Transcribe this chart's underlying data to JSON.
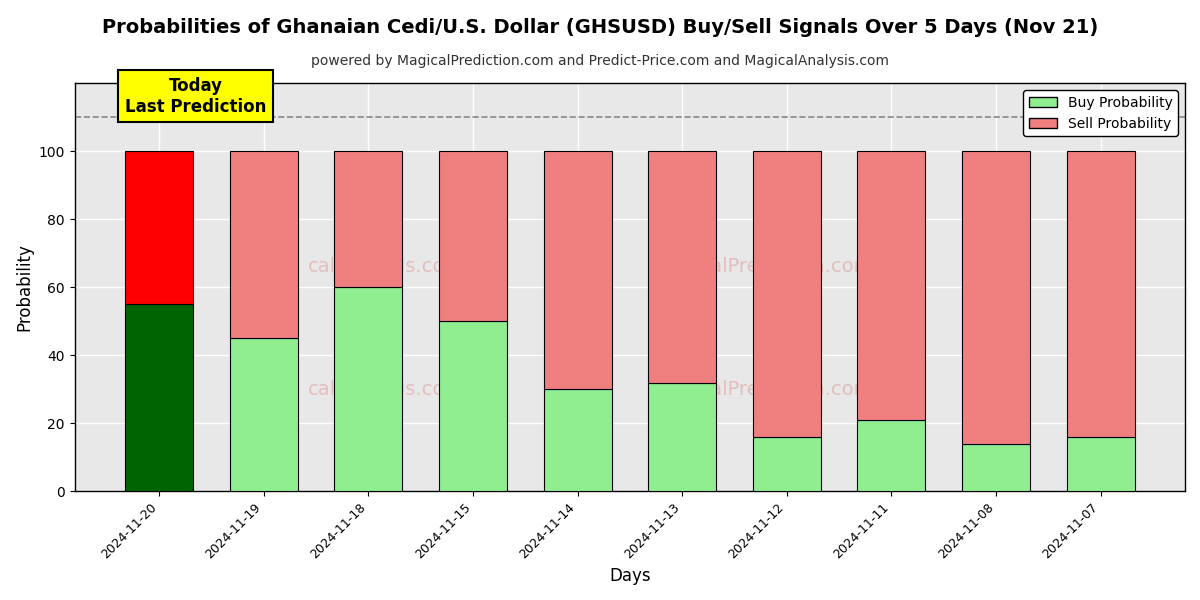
{
  "title": "Probabilities of Ghanaian Cedi/U.S. Dollar (GHSUSD) Buy/Sell Signals Over 5 Days (Nov 21)",
  "subtitle": "powered by MagicalPrediction.com and Predict-Price.com and MagicalAnalysis.com",
  "xlabel": "Days",
  "ylabel": "Probability",
  "categories": [
    "2024-11-20",
    "2024-11-19",
    "2024-11-18",
    "2024-11-15",
    "2024-11-14",
    "2024-11-13",
    "2024-11-12",
    "2024-11-11",
    "2024-11-08",
    "2024-11-07"
  ],
  "buy_values": [
    55,
    45,
    60,
    50,
    30,
    32,
    16,
    21,
    14,
    16
  ],
  "sell_values": [
    45,
    55,
    40,
    50,
    70,
    68,
    84,
    79,
    86,
    84
  ],
  "today_bar_buy_color": "#006400",
  "today_bar_sell_color": "#FF0000",
  "other_bar_buy_color": "#90EE90",
  "other_bar_sell_color": "#F08080",
  "bar_edge_color": "#000000",
  "background_color": "#FFFFFF",
  "plot_bg_color": "#E8E8E8",
  "grid_color": "#AAAAAA",
  "dashed_line_y": 110,
  "ylim": [
    0,
    120
  ],
  "yticks": [
    0,
    20,
    40,
    60,
    80,
    100
  ],
  "annotation_text": "Today\nLast Prediction",
  "legend_buy_label": "Buy Probability",
  "legend_sell_label": "Sell Probability",
  "title_fontsize": 14,
  "subtitle_fontsize": 10,
  "label_fontsize": 12,
  "tick_fontsize": 9,
  "bar_width": 0.65
}
